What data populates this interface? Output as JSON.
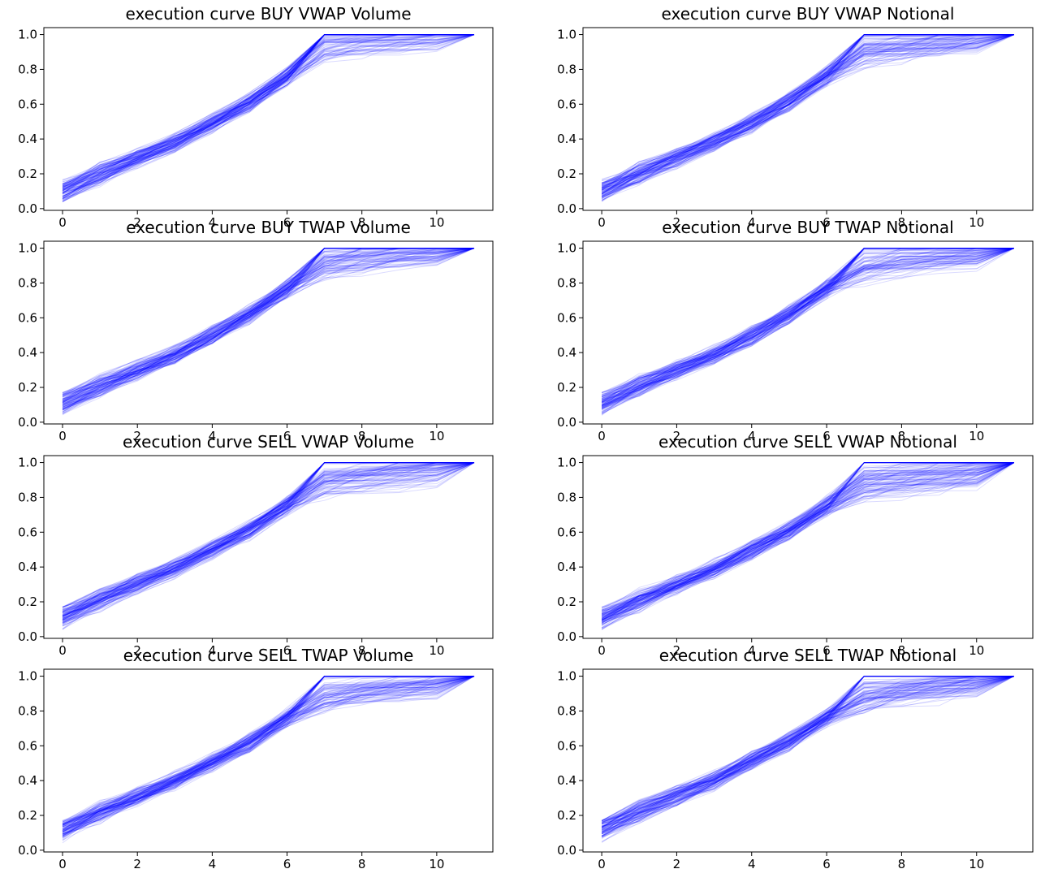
{
  "figure": {
    "color": "#0000ff",
    "series_count": 120
  },
  "chart_data": [
    {
      "type": "line",
      "title": "execution curve BUY VWAP Volume",
      "x": [
        0,
        1,
        2,
        3,
        4,
        5,
        6,
        7,
        8,
        9,
        10,
        11
      ],
      "xlim": [
        -0.5,
        11.5
      ],
      "ylim": [
        -0.01,
        1.04
      ],
      "xticks": [
        0,
        2,
        4,
        6,
        8,
        10
      ],
      "yticks": [
        0.0,
        0.2,
        0.4,
        0.6,
        0.8,
        1.0
      ],
      "xtick_labels": [
        "0",
        "2",
        "4",
        "6",
        "8",
        "10"
      ],
      "ytick_labels": [
        "0.0",
        "0.2",
        "0.4",
        "0.6",
        "0.8",
        "1.0"
      ],
      "median_curve": [
        0.1,
        0.2,
        0.29,
        0.38,
        0.49,
        0.61,
        0.76,
        0.93,
        0.95,
        0.96,
        0.97,
        1.0
      ],
      "spread": [
        0.06,
        0.06,
        0.05,
        0.05,
        0.05,
        0.05,
        0.05,
        0.08,
        0.09,
        0.08,
        0.07,
        0.0
      ],
      "capped_fraction": 0.4
    },
    {
      "type": "line",
      "title": "execution curve BUY VWAP Notional",
      "x": [
        0,
        1,
        2,
        3,
        4,
        5,
        6,
        7,
        8,
        9,
        10,
        11
      ],
      "xlim": [
        -0.5,
        11.5
      ],
      "ylim": [
        -0.01,
        1.04
      ],
      "xticks": [
        0,
        2,
        4,
        6,
        8,
        10
      ],
      "yticks": [
        0.0,
        0.2,
        0.4,
        0.6,
        0.8,
        1.0
      ],
      "xtick_labels": [
        "0",
        "2",
        "4",
        "6",
        "8",
        "10"
      ],
      "ytick_labels": [
        "0.0",
        "0.2",
        "0.4",
        "0.6",
        "0.8",
        "1.0"
      ],
      "median_curve": [
        0.1,
        0.2,
        0.29,
        0.38,
        0.49,
        0.61,
        0.76,
        0.9,
        0.92,
        0.94,
        0.96,
        1.0
      ],
      "spread": [
        0.06,
        0.06,
        0.05,
        0.05,
        0.05,
        0.05,
        0.05,
        0.09,
        0.09,
        0.08,
        0.07,
        0.0
      ],
      "capped_fraction": 0.35
    },
    {
      "type": "line",
      "title": "execution curve BUY TWAP Volume",
      "x": [
        0,
        1,
        2,
        3,
        4,
        5,
        6,
        7,
        8,
        9,
        10,
        11
      ],
      "xlim": [
        -0.5,
        11.5
      ],
      "ylim": [
        -0.01,
        1.04
      ],
      "xticks": [
        0,
        2,
        4,
        6,
        8,
        10
      ],
      "yticks": [
        0.0,
        0.2,
        0.4,
        0.6,
        0.8,
        1.0
      ],
      "xtick_labels": [
        "0",
        "2",
        "4",
        "6",
        "8",
        "10"
      ],
      "ytick_labels": [
        "0.0",
        "0.2",
        "0.4",
        "0.6",
        "0.8",
        "1.0"
      ],
      "median_curve": [
        0.11,
        0.21,
        0.3,
        0.39,
        0.5,
        0.62,
        0.77,
        0.91,
        0.93,
        0.95,
        0.96,
        1.0
      ],
      "spread": [
        0.06,
        0.06,
        0.05,
        0.05,
        0.05,
        0.05,
        0.05,
        0.08,
        0.08,
        0.07,
        0.06,
        0.0
      ],
      "capped_fraction": 0.4
    },
    {
      "type": "line",
      "title": "execution curve BUY TWAP Notional",
      "x": [
        0,
        1,
        2,
        3,
        4,
        5,
        6,
        7,
        8,
        9,
        10,
        11
      ],
      "xlim": [
        -0.5,
        11.5
      ],
      "ylim": [
        -0.01,
        1.04
      ],
      "xticks": [
        0,
        2,
        4,
        6,
        8,
        10
      ],
      "yticks": [
        0.0,
        0.2,
        0.4,
        0.6,
        0.8,
        1.0
      ],
      "xtick_labels": [
        "0",
        "2",
        "4",
        "6",
        "8",
        "10"
      ],
      "ytick_labels": [
        "0.0",
        "0.2",
        "0.4",
        "0.6",
        "0.8",
        "1.0"
      ],
      "median_curve": [
        0.11,
        0.21,
        0.3,
        0.39,
        0.5,
        0.62,
        0.77,
        0.89,
        0.91,
        0.93,
        0.95,
        1.0
      ],
      "spread": [
        0.06,
        0.06,
        0.05,
        0.05,
        0.05,
        0.05,
        0.05,
        0.09,
        0.09,
        0.08,
        0.07,
        0.0
      ],
      "capped_fraction": 0.35
    },
    {
      "type": "line",
      "title": "execution curve SELL VWAP Volume",
      "x": [
        0,
        1,
        2,
        3,
        4,
        5,
        6,
        7,
        8,
        9,
        10,
        11
      ],
      "xlim": [
        -0.5,
        11.5
      ],
      "ylim": [
        -0.01,
        1.04
      ],
      "xticks": [
        0,
        2,
        4,
        6,
        8,
        10
      ],
      "yticks": [
        0.0,
        0.2,
        0.4,
        0.6,
        0.8,
        1.0
      ],
      "xtick_labels": [
        "0",
        "2",
        "4",
        "6",
        "8",
        "10"
      ],
      "ytick_labels": [
        "0.0",
        "0.2",
        "0.4",
        "0.6",
        "0.8",
        "1.0"
      ],
      "median_curve": [
        0.11,
        0.21,
        0.3,
        0.39,
        0.5,
        0.61,
        0.75,
        0.88,
        0.9,
        0.92,
        0.95,
        1.0
      ],
      "spread": [
        0.06,
        0.06,
        0.05,
        0.05,
        0.05,
        0.05,
        0.05,
        0.09,
        0.09,
        0.09,
        0.08,
        0.0
      ],
      "capped_fraction": 0.3
    },
    {
      "type": "line",
      "title": "execution curve SELL VWAP Notional",
      "x": [
        0,
        1,
        2,
        3,
        4,
        5,
        6,
        7,
        8,
        9,
        10,
        11
      ],
      "xlim": [
        -0.5,
        11.5
      ],
      "ylim": [
        -0.01,
        1.04
      ],
      "xticks": [
        0,
        2,
        4,
        6,
        8,
        10
      ],
      "yticks": [
        0.0,
        0.2,
        0.4,
        0.6,
        0.8,
        1.0
      ],
      "xtick_labels": [
        "0",
        "2",
        "4",
        "6",
        "8",
        "10"
      ],
      "ytick_labels": [
        "0.0",
        "0.2",
        "0.4",
        "0.6",
        "0.8",
        "1.0"
      ],
      "median_curve": [
        0.11,
        0.21,
        0.3,
        0.39,
        0.5,
        0.61,
        0.75,
        0.87,
        0.89,
        0.91,
        0.94,
        1.0
      ],
      "spread": [
        0.06,
        0.06,
        0.05,
        0.05,
        0.05,
        0.05,
        0.05,
        0.09,
        0.09,
        0.09,
        0.08,
        0.0
      ],
      "capped_fraction": 0.3
    },
    {
      "type": "line",
      "title": "execution curve SELL TWAP Volume",
      "x": [
        0,
        1,
        2,
        3,
        4,
        5,
        6,
        7,
        8,
        9,
        10,
        11
      ],
      "xlim": [
        -0.5,
        11.5
      ],
      "ylim": [
        -0.01,
        1.04
      ],
      "xticks": [
        0,
        2,
        4,
        6,
        8,
        10
      ],
      "yticks": [
        0.0,
        0.2,
        0.4,
        0.6,
        0.8,
        1.0
      ],
      "xtick_labels": [
        "0",
        "2",
        "4",
        "6",
        "8",
        "10"
      ],
      "ytick_labels": [
        "0.0",
        "0.2",
        "0.4",
        "0.6",
        "0.8",
        "1.0"
      ],
      "median_curve": [
        0.12,
        0.22,
        0.31,
        0.4,
        0.51,
        0.62,
        0.76,
        0.89,
        0.91,
        0.93,
        0.95,
        1.0
      ],
      "spread": [
        0.06,
        0.06,
        0.05,
        0.05,
        0.05,
        0.05,
        0.05,
        0.09,
        0.09,
        0.09,
        0.08,
        0.0
      ],
      "capped_fraction": 0.3
    },
    {
      "type": "line",
      "title": "execution curve SELL TWAP Notional",
      "x": [
        0,
        1,
        2,
        3,
        4,
        5,
        6,
        7,
        8,
        9,
        10,
        11
      ],
      "xlim": [
        -0.5,
        11.5
      ],
      "ylim": [
        -0.01,
        1.04
      ],
      "xticks": [
        0,
        2,
        4,
        6,
        8,
        10
      ],
      "yticks": [
        0.0,
        0.2,
        0.4,
        0.6,
        0.8,
        1.0
      ],
      "xtick_labels": [
        "0",
        "2",
        "4",
        "6",
        "8",
        "10"
      ],
      "ytick_labels": [
        "0.0",
        "0.2",
        "0.4",
        "0.6",
        "0.8",
        "1.0"
      ],
      "median_curve": [
        0.12,
        0.22,
        0.31,
        0.4,
        0.51,
        0.62,
        0.76,
        0.88,
        0.9,
        0.92,
        0.95,
        1.0
      ],
      "spread": [
        0.06,
        0.06,
        0.05,
        0.05,
        0.05,
        0.05,
        0.05,
        0.09,
        0.09,
        0.09,
        0.08,
        0.0
      ],
      "capped_fraction": 0.3
    }
  ]
}
